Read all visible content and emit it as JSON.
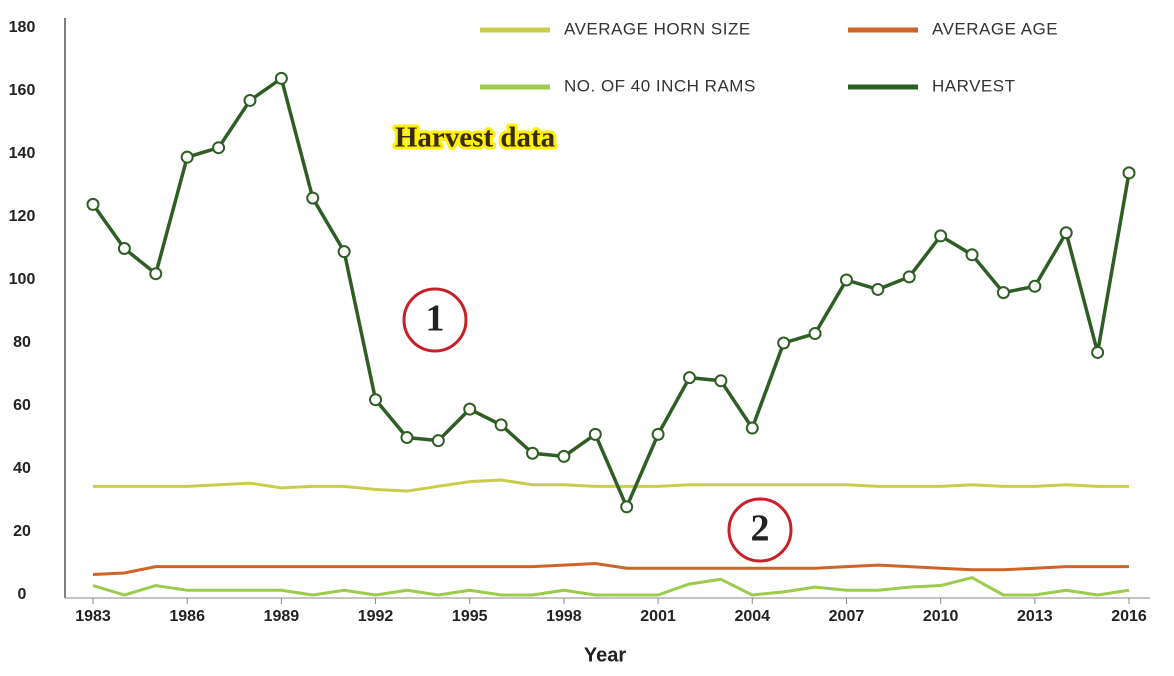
{
  "chart_data": {
    "type": "line",
    "x_label": "Year",
    "x": [
      1983,
      1984,
      1985,
      1986,
      1987,
      1988,
      1989,
      1990,
      1991,
      1992,
      1993,
      1994,
      1995,
      1996,
      1997,
      1998,
      1999,
      2000,
      2001,
      2002,
      2003,
      2004,
      2005,
      2006,
      2007,
      2008,
      2009,
      2010,
      2011,
      2012,
      2013,
      2014,
      2015,
      2016
    ],
    "xlim": [
      1983,
      2016
    ],
    "xticks": [
      1983,
      1986,
      1989,
      1992,
      1995,
      1998,
      2001,
      2004,
      2007,
      2010,
      2013,
      2016
    ],
    "ylim": [
      0,
      180
    ],
    "yticks": [
      0,
      20,
      40,
      60,
      80,
      100,
      120,
      140,
      160,
      180
    ],
    "grid": false,
    "legend": "upper right",
    "annotations": [
      "Harvest data",
      "1",
      "2"
    ],
    "series": [
      {
        "name": "AVERAGE HORN SIZE",
        "color": "#c8cd4e",
        "values": [
          34.5,
          34.5,
          34.5,
          34.5,
          35,
          35.5,
          34,
          34.5,
          34.5,
          33.5,
          33,
          34.5,
          36,
          36.5,
          35,
          35,
          34.5,
          34.5,
          34.5,
          35,
          35,
          35,
          35,
          35,
          35,
          34.5,
          34.5,
          34.5,
          35,
          34.5,
          34.5,
          35,
          34.5,
          34.5
        ]
      },
      {
        "name": "AVERAGE AGE",
        "color": "#cf6429",
        "values": [
          6.5,
          7,
          9,
          9,
          9,
          9,
          9,
          9,
          9,
          9,
          9,
          9,
          9,
          9,
          9,
          9.5,
          10,
          8.5,
          8.5,
          8.5,
          8.5,
          8.5,
          8.5,
          8.5,
          9,
          9.5,
          9,
          8.5,
          8,
          8,
          8.5,
          9,
          9,
          9
        ]
      },
      {
        "name": "NO. OF 40 INCH RAMS",
        "color": "#9dcb4c",
        "values": [
          3,
          0,
          3,
          1.5,
          1.5,
          1.5,
          1.5,
          0,
          1.5,
          0,
          1.5,
          0,
          1.5,
          0,
          0,
          1.5,
          0,
          0,
          0,
          3.5,
          5,
          0,
          1,
          2.5,
          1.5,
          1.5,
          2.5,
          3,
          5.5,
          0,
          0,
          1.5,
          0,
          1.5
        ]
      },
      {
        "name": "HARVEST",
        "color": "#2e5e24",
        "markers": true,
        "values": [
          124,
          110,
          102,
          139,
          142,
          157,
          164,
          126,
          109,
          62,
          50,
          49,
          59,
          54,
          45,
          44,
          51,
          28,
          51,
          69,
          68,
          53,
          80,
          83,
          100,
          97,
          101,
          114,
          108,
          96,
          98,
          115,
          77,
          134
        ]
      }
    ]
  }
}
